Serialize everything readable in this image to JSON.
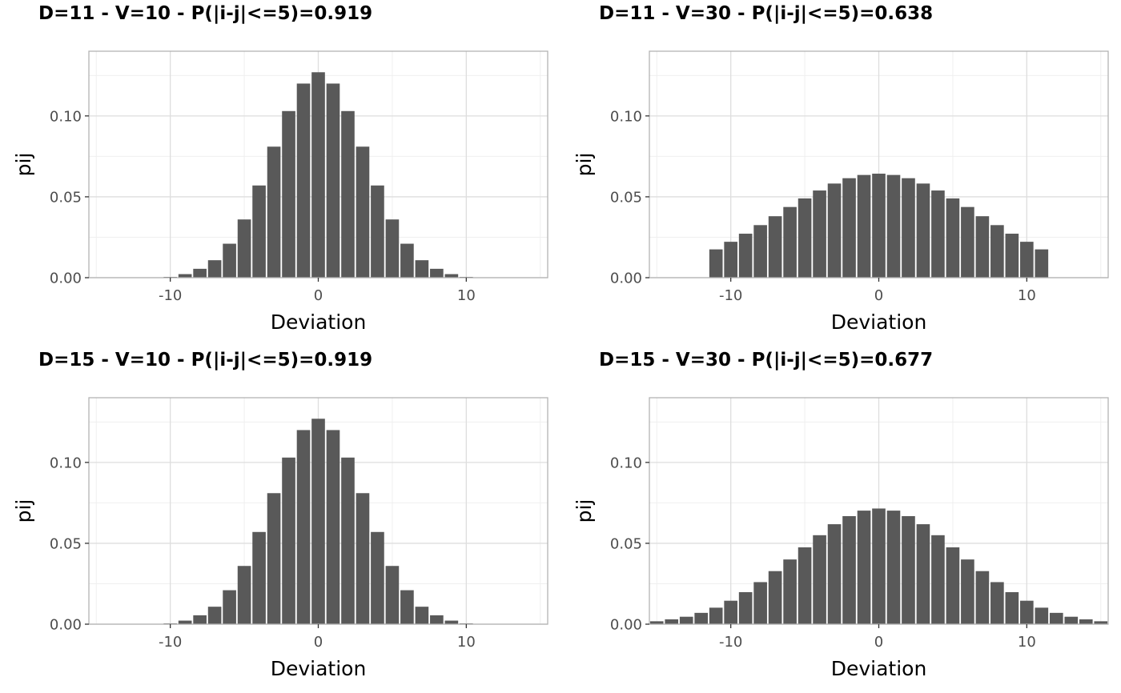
{
  "panels": [
    {
      "title": "D=11 - V=10 - P(|i-j|<=5)=0.919"
    },
    {
      "title": "D=11 - V=30 - P(|i-j|<=5)=0.638"
    },
    {
      "title": "D=15 - V=10 - P(|i-j|<=5)=0.919"
    },
    {
      "title": "D=15 - V=30 - P(|i-j|<=5)=0.677"
    }
  ],
  "colors": {
    "bar": "#595959",
    "grid_major": "#dedede",
    "grid_minor": "#efefef",
    "border": "#b3b3b3",
    "tick_label": "#4d4d4d"
  },
  "chart_data": [
    {
      "type": "bar",
      "title": "D=11 - V=10 - P(|i-j|<=5)=0.919",
      "xlabel": "Deviation",
      "ylabel": "pij",
      "xlim": [
        -15.5,
        15.5
      ],
      "ylim": [
        0,
        0.14
      ],
      "xticks": [
        "-10",
        "0",
        "10"
      ],
      "yticks": [
        "0.00",
        "0.05",
        "0.10"
      ],
      "grid": true,
      "x": [
        -10,
        -9,
        -8,
        -7,
        -6,
        -5,
        -4,
        -3,
        -2,
        -1,
        0,
        1,
        2,
        3,
        4,
        5,
        6,
        7,
        8,
        9,
        10
      ],
      "values": [
        0.0005,
        0.0022,
        0.0055,
        0.0108,
        0.021,
        0.036,
        0.057,
        0.081,
        0.103,
        0.12,
        0.127,
        0.12,
        0.103,
        0.081,
        0.057,
        0.036,
        0.021,
        0.0108,
        0.0055,
        0.0022,
        0.0005
      ]
    },
    {
      "type": "bar",
      "title": "D=11 - V=30 - P(|i-j|<=5)=0.638",
      "xlabel": "Deviation",
      "ylabel": "pij",
      "xlim": [
        -15.5,
        15.5
      ],
      "ylim": [
        0,
        0.14
      ],
      "xticks": [
        "-10",
        "0",
        "10"
      ],
      "yticks": [
        "0.00",
        "0.05",
        "0.10"
      ],
      "grid": true,
      "x": [
        -11,
        -10,
        -9,
        -8,
        -7,
        -6,
        -5,
        -4,
        -3,
        -2,
        -1,
        0,
        1,
        2,
        3,
        4,
        5,
        6,
        7,
        8,
        9,
        10,
        11
      ],
      "values": [
        0.0175,
        0.0222,
        0.0272,
        0.0325,
        0.038,
        0.0437,
        0.049,
        0.0539,
        0.0582,
        0.0615,
        0.0635,
        0.0643,
        0.0635,
        0.0615,
        0.0582,
        0.0539,
        0.049,
        0.0437,
        0.038,
        0.0325,
        0.0272,
        0.0222,
        0.0175
      ]
    },
    {
      "type": "bar",
      "title": "D=15 - V=10 - P(|i-j|<=5)=0.919",
      "xlabel": "Deviation",
      "ylabel": "pij",
      "xlim": [
        -15.5,
        15.5
      ],
      "ylim": [
        0,
        0.14
      ],
      "xticks": [
        "-10",
        "0",
        "10"
      ],
      "yticks": [
        "0.00",
        "0.05",
        "0.10"
      ],
      "grid": true,
      "x": [
        -14,
        -13,
        -12,
        -11,
        -10,
        -9,
        -8,
        -7,
        -6,
        -5,
        -4,
        -3,
        -2,
        -1,
        0,
        1,
        2,
        3,
        4,
        5,
        6,
        7,
        8,
        9,
        10,
        11,
        12,
        13,
        14
      ],
      "values": [
        1e-05,
        2e-05,
        5e-05,
        0.0001,
        0.0005,
        0.0022,
        0.0055,
        0.0108,
        0.021,
        0.036,
        0.057,
        0.081,
        0.103,
        0.12,
        0.127,
        0.12,
        0.103,
        0.081,
        0.057,
        0.036,
        0.021,
        0.0108,
        0.0055,
        0.0022,
        0.0005,
        0.0001,
        5e-05,
        2e-05,
        1e-05
      ]
    },
    {
      "type": "bar",
      "title": "D=15 - V=30 - P(|i-j|<=5)=0.677",
      "xlabel": "Deviation",
      "ylabel": "pij",
      "xlim": [
        -15.5,
        15.5
      ],
      "ylim": [
        0,
        0.14
      ],
      "xticks": [
        "-10",
        "0",
        "10"
      ],
      "yticks": [
        "0.00",
        "0.05",
        "0.10"
      ],
      "grid": true,
      "x": [
        -15,
        -14,
        -13,
        -12,
        -11,
        -10,
        -9,
        -8,
        -7,
        -6,
        -5,
        -4,
        -3,
        -2,
        -1,
        0,
        1,
        2,
        3,
        4,
        5,
        6,
        7,
        8,
        9,
        10,
        11,
        12,
        13,
        14,
        15
      ],
      "values": [
        0.0018,
        0.003,
        0.0046,
        0.007,
        0.0102,
        0.0145,
        0.0198,
        0.026,
        0.0328,
        0.04,
        0.0475,
        0.055,
        0.0618,
        0.0668,
        0.0702,
        0.0715,
        0.0702,
        0.0668,
        0.0618,
        0.055,
        0.0475,
        0.04,
        0.0328,
        0.026,
        0.0198,
        0.0145,
        0.0102,
        0.007,
        0.0046,
        0.003,
        0.0018
      ]
    }
  ]
}
